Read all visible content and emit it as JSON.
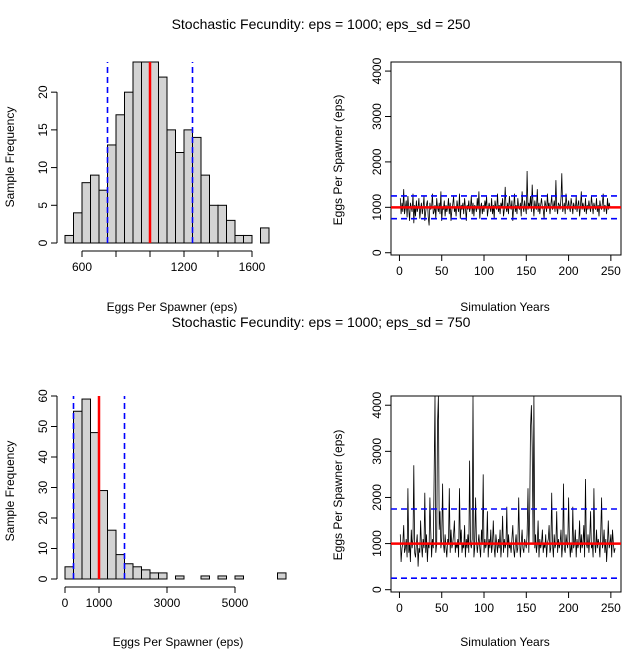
{
  "colors": {
    "bar_fill": "#d3d3d3",
    "bar_edge": "#000000",
    "mean_line": "#ff0000",
    "sd_line": "#0000ff",
    "series_line": "#000000"
  },
  "chart_data": [
    {
      "type": "bar",
      "title": "Stochastic Fecundity: eps = 1000; eps_sd = 250",
      "xlabel": "Eggs Per Spawner (eps)",
      "ylabel": "Sample Frequency",
      "bin_start": 500,
      "bin_width": 50,
      "values": [
        1,
        4,
        8,
        9,
        7,
        13,
        17,
        20,
        24,
        24,
        24,
        22,
        15,
        12,
        15,
        14,
        9,
        5,
        5,
        3,
        1,
        1,
        0,
        2
      ],
      "xticks": [
        600,
        800,
        1000,
        1200,
        1400,
        1600
      ],
      "xtick_labels": [
        "600",
        "",
        "",
        "1200",
        "",
        "1600"
      ],
      "yticks": [
        0,
        5,
        10,
        15,
        20
      ],
      "xlim": [
        500,
        1800
      ],
      "ylim": [
        0,
        24
      ],
      "mean": 1000,
      "sd_lines": [
        750,
        1250
      ]
    },
    {
      "type": "line",
      "title": "",
      "xlabel": "Simulation Years",
      "ylabel": "Eggs Per Spawner (eps)",
      "x_start": 1,
      "values": [
        1200,
        850,
        1100,
        900,
        1400,
        850,
        1000,
        1150,
        780,
        1250,
        950,
        700,
        1100,
        1000,
        900,
        1300,
        650,
        1050,
        800,
        1150,
        900,
        1000,
        1200,
        750,
        950,
        1100,
        850,
        1000,
        1250,
        700,
        900,
        1050,
        1150,
        800,
        600,
        1100,
        950,
        1000,
        1300,
        850,
        900,
        1050,
        750,
        1200,
        1000,
        900,
        1100,
        850,
        1350,
        700,
        1000,
        950,
        1150,
        800,
        1050,
        900,
        1000,
        1200,
        850,
        1100,
        700,
        950,
        1050,
        1250,
        900,
        1000,
        800,
        1150,
        1000,
        900,
        1300,
        750,
        1050,
        950,
        1100,
        850,
        1200,
        1000,
        700,
        1050,
        950,
        1150,
        900,
        1000,
        1250,
        850,
        1100,
        800,
        1050,
        1000,
        900,
        1200,
        950,
        1350,
        750,
        1000,
        1100,
        850,
        1050,
        900,
        1150,
        1000,
        1250,
        800,
        950,
        1100,
        1000,
        900,
        1200,
        850,
        1050,
        750,
        1150,
        1000,
        950,
        1300,
        900,
        1050,
        850,
        1100,
        1000,
        1200,
        800,
        950,
        1450,
        1000,
        900,
        1100,
        850,
        1250,
        1050,
        950,
        1150,
        700,
        1000,
        1300,
        900,
        1050,
        850,
        1200,
        1000,
        950,
        1100,
        800,
        1350,
        1050,
        900,
        1150,
        1000,
        850,
        1800,
        950,
        1100,
        1000,
        1250,
        900,
        1500,
        1050,
        800,
        1150,
        1000,
        950,
        1400,
        900,
        1100,
        850,
        1050,
        1200,
        1000,
        950,
        750,
        1150,
        1050,
        900,
        1300,
        1000,
        1100,
        850,
        1050,
        1250,
        950,
        1000,
        1150,
        900,
        1600,
        1000,
        850,
        1100,
        1050,
        950,
        1200,
        1750,
        900,
        1000,
        1100,
        850,
        1300,
        1050,
        950,
        1150,
        1000,
        900,
        1200,
        1050,
        850,
        1100,
        1000,
        950,
        1250,
        900,
        1050,
        1150,
        800,
        1000,
        1350,
        950,
        1100,
        1000,
        900,
        1200,
        850,
        1050,
        950,
        1150,
        1000,
        900,
        1250,
        1050,
        850,
        1100,
        1000,
        950,
        1200,
        900,
        1050,
        800,
        1150,
        1000,
        950,
        1100,
        1300,
        900,
        1050,
        1000,
        850,
        1200,
        950,
        1100,
        1000
      ],
      "xticks": [
        0,
        50,
        100,
        150,
        200,
        250
      ],
      "yticks": [
        0,
        1000,
        2000,
        3000,
        4000
      ],
      "xlim": [
        -10,
        262
      ],
      "ylim": [
        -50,
        4200
      ],
      "mean": 1000,
      "sd_lines": [
        750,
        1250
      ]
    },
    {
      "type": "bar",
      "title": "Stochastic Fecundity: eps = 1000; eps_sd = 750",
      "xlabel": "Eggs Per Spawner (eps)",
      "ylabel": "Sample Frequency",
      "bin_start": 0,
      "bin_width": 250,
      "values": [
        4,
        55,
        59,
        48,
        29,
        16,
        8,
        5,
        4,
        3,
        2,
        2,
        0,
        1,
        0,
        0,
        1,
        0,
        1,
        0,
        1,
        0,
        0,
        0,
        0,
        2
      ],
      "xticks": [
        0,
        1000,
        3000,
        5000
      ],
      "yticks": [
        0,
        10,
        20,
        30,
        40,
        50,
        60
      ],
      "xlim": [
        0,
        6500
      ],
      "ylim": [
        0,
        60
      ],
      "mean": 1000,
      "sd_lines": [
        250,
        1750
      ]
    },
    {
      "type": "line",
      "title": "",
      "xlabel": "Simulation Years",
      "ylabel": "Eggs Per Spawner (eps)",
      "x_start": 1,
      "values": [
        1200,
        600,
        900,
        1000,
        1400,
        800,
        900,
        1100,
        700,
        2200,
        800,
        1000,
        600,
        1300,
        900,
        1100,
        2700,
        800,
        700,
        1000,
        1200,
        500,
        900,
        800,
        1500,
        1000,
        700,
        1100,
        900,
        2100,
        800,
        1200,
        600,
        1000,
        900,
        2000,
        1300,
        700,
        1100,
        900,
        2400,
        4200,
        800,
        1000,
        3600,
        4200,
        1300,
        1700,
        900,
        1100,
        2300,
        1000,
        800,
        1200,
        900,
        700,
        1100,
        1000,
        2200,
        800,
        1300,
        900,
        1000,
        1200,
        1500,
        800,
        1000,
        900,
        1100,
        700,
        2200,
        1000,
        1300,
        800,
        1000,
        900,
        1400,
        700,
        1100,
        900,
        1200,
        800,
        2800,
        1000,
        900,
        1100,
        4200,
        700,
        900,
        2000,
        1100,
        800,
        1000,
        1200,
        900,
        700,
        1300,
        1000,
        2500,
        800,
        1100,
        900,
        1000,
        1700,
        700,
        1100,
        900,
        1300,
        800,
        1000,
        1500,
        900,
        700,
        1200,
        1000,
        800,
        1100,
        900,
        1300,
        700,
        1000,
        1600,
        800,
        1100,
        900,
        1000,
        1800,
        700,
        1200,
        900,
        1000,
        800,
        1100,
        1400,
        900,
        700,
        1000,
        1200,
        800,
        900,
        2000,
        1100,
        700,
        1000,
        1300,
        900,
        800,
        1100,
        1000,
        900,
        1200,
        2200,
        800,
        1700,
        3500,
        4000,
        3100,
        1000,
        4200,
        900,
        1200,
        800,
        1000,
        1500,
        700,
        1100,
        900,
        1000,
        1300,
        800,
        1000,
        900,
        1200,
        700,
        1000,
        1100,
        1400,
        800,
        900,
        2100,
        1000,
        700,
        1200,
        900,
        1000,
        1700,
        800,
        1100,
        900,
        1000,
        1300,
        700,
        1000,
        2300,
        900,
        800,
        1200,
        1000,
        900,
        2000,
        1100,
        700,
        1000,
        800,
        1800,
        900,
        1000,
        1300,
        700,
        1100,
        900,
        1000,
        1500,
        800,
        1200,
        900,
        1000,
        1400,
        700,
        2400,
        1000,
        900,
        1200,
        800,
        1100,
        1700,
        900,
        1000,
        700,
        2200,
        1000,
        800,
        1300,
        900,
        1100,
        1000,
        700,
        1200,
        2000,
        900,
        1000,
        1300,
        800,
        1100,
        600,
        1000,
        1500,
        900,
        1000,
        1200,
        700,
        1300,
        1000,
        800,
        900
      ],
      "xticks": [
        0,
        50,
        100,
        150,
        200,
        250
      ],
      "yticks": [
        0,
        1000,
        2000,
        3000,
        4000
      ],
      "xlim": [
        -10,
        262
      ],
      "ylim": [
        -50,
        4200
      ],
      "mean": 1000,
      "sd_lines": [
        250,
        1750
      ]
    }
  ]
}
